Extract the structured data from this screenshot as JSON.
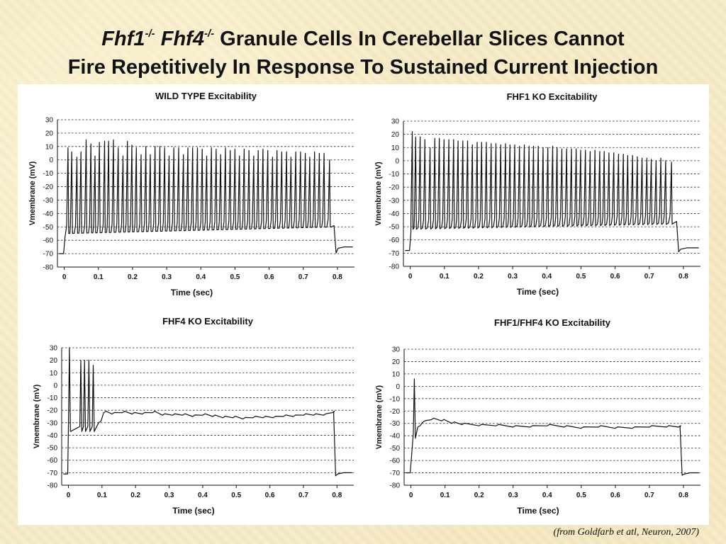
{
  "slide_title": {
    "line1_gene1": "Fhf1",
    "line1_sup1": "-/-",
    "line1_gene2": "Fhf4",
    "line1_sup2": "-/-",
    "line1_rest": " Granule Cells In Cerebellar Slices Cannot",
    "line2": "Fire Repetitively In Response To Sustained Current Injection"
  },
  "citation": "(from Goldfarb et atl, Neuron, 2007)",
  "chart_data": [
    {
      "type": "line",
      "title": "WILD TYPE Excitability",
      "xlabel": "Time (sec)",
      "ylabel": "Vmembrane (mV)",
      "xlim": [
        -0.02,
        0.85
      ],
      "ylim": [
        -80,
        30
      ],
      "xticks": [
        0,
        0.1,
        0.2,
        0.3,
        0.4,
        0.5,
        0.6,
        0.7,
        0.8
      ],
      "xtick_labels": [
        "0",
        "0.1",
        "0.2",
        "0.3",
        "0.4",
        "0.5",
        "0.6",
        "0.7",
        "0.8"
      ],
      "yticks": [
        -80,
        -70,
        -60,
        -50,
        -40,
        -30,
        -20,
        -10,
        0,
        10,
        20,
        30
      ],
      "grid": "horizontal dashed",
      "trace": {
        "rest": -70,
        "stim_on": 0.0,
        "stim_off": 0.79,
        "baseline_pre": -70,
        "baseline_post": -65,
        "plateau_start": -57,
        "plateau_end": -52,
        "spikes": [
          {
            "t": 0.011,
            "peak": 9
          },
          {
            "t": 0.022,
            "peak": 6
          },
          {
            "t": 0.037,
            "peak": 2
          },
          {
            "t": 0.049,
            "peak": 6
          },
          {
            "t": 0.064,
            "peak": 15
          },
          {
            "t": 0.078,
            "peak": 12
          },
          {
            "t": 0.09,
            "peak": 3
          },
          {
            "t": 0.103,
            "peak": 13
          },
          {
            "t": 0.118,
            "peak": 14
          },
          {
            "t": 0.13,
            "peak": 14
          },
          {
            "t": 0.144,
            "peak": 15
          },
          {
            "t": 0.158,
            "peak": 9
          },
          {
            "t": 0.172,
            "peak": 3
          },
          {
            "t": 0.185,
            "peak": 14
          },
          {
            "t": 0.198,
            "peak": 11
          },
          {
            "t": 0.211,
            "peak": 9
          },
          {
            "t": 0.225,
            "peak": 4
          },
          {
            "t": 0.239,
            "peak": 10
          },
          {
            "t": 0.252,
            "peak": 4
          },
          {
            "t": 0.266,
            "peak": 10
          },
          {
            "t": 0.28,
            "peak": 10
          },
          {
            "t": 0.294,
            "peak": 9
          },
          {
            "t": 0.307,
            "peak": 3
          },
          {
            "t": 0.321,
            "peak": 9
          },
          {
            "t": 0.335,
            "peak": 9
          },
          {
            "t": 0.349,
            "peak": 4
          },
          {
            "t": 0.362,
            "peak": 9
          },
          {
            "t": 0.376,
            "peak": 9
          },
          {
            "t": 0.39,
            "peak": 9
          },
          {
            "t": 0.404,
            "peak": 8
          },
          {
            "t": 0.417,
            "peak": 3
          },
          {
            "t": 0.431,
            "peak": 9
          },
          {
            "t": 0.445,
            "peak": 8
          },
          {
            "t": 0.458,
            "peak": 4
          },
          {
            "t": 0.472,
            "peak": 9
          },
          {
            "t": 0.486,
            "peak": 7
          },
          {
            "t": 0.5,
            "peak": 8
          },
          {
            "t": 0.513,
            "peak": 3
          },
          {
            "t": 0.527,
            "peak": 8
          },
          {
            "t": 0.541,
            "peak": 7
          },
          {
            "t": 0.555,
            "peak": 3
          },
          {
            "t": 0.568,
            "peak": 7
          },
          {
            "t": 0.582,
            "peak": 8
          },
          {
            "t": 0.596,
            "peak": 7
          },
          {
            "t": 0.61,
            "peak": 2
          },
          {
            "t": 0.623,
            "peak": 7
          },
          {
            "t": 0.637,
            "peak": 6
          },
          {
            "t": 0.651,
            "peak": 6
          },
          {
            "t": 0.664,
            "peak": 2
          },
          {
            "t": 0.678,
            "peak": 6
          },
          {
            "t": 0.692,
            "peak": 6
          },
          {
            "t": 0.706,
            "peak": 5
          },
          {
            "t": 0.719,
            "peak": 2
          },
          {
            "t": 0.733,
            "peak": 6
          },
          {
            "t": 0.747,
            "peak": 5
          },
          {
            "t": 0.761,
            "peak": 5
          },
          {
            "t": 0.777,
            "peak": 0
          }
        ],
        "spike_trough": -55
      }
    },
    {
      "type": "line",
      "title": "FHF1 KO Excitability",
      "xlabel": "Time (sec)",
      "ylabel": "Vmembrane (mV)",
      "xlim": [
        -0.02,
        0.85
      ],
      "ylim": [
        -80,
        30
      ],
      "xticks": [
        0,
        0.1,
        0.2,
        0.3,
        0.4,
        0.5,
        0.6,
        0.7,
        0.8
      ],
      "xtick_labels": [
        "0",
        "0.1",
        "0.2",
        "0.3",
        "0.4",
        "0.5",
        "0.6",
        "0.7",
        "0.8"
      ],
      "yticks": [
        -80,
        -70,
        -60,
        -50,
        -40,
        -30,
        -20,
        -10,
        0,
        10,
        20,
        30
      ],
      "grid": "horizontal dashed",
      "trace": {
        "rest": -68,
        "stim_on": 0.0,
        "stim_off": 0.78,
        "baseline_pre": -68,
        "baseline_post": -66,
        "plateau_start": -53,
        "plateau_end": -49,
        "spikes": [
          {
            "t": 0.006,
            "peak": 22
          },
          {
            "t": 0.016,
            "peak": 18
          },
          {
            "t": 0.029,
            "peak": 18
          },
          {
            "t": 0.043,
            "peak": 16
          },
          {
            "t": 0.058,
            "peak": 10
          },
          {
            "t": 0.072,
            "peak": 17
          },
          {
            "t": 0.085,
            "peak": 17
          },
          {
            "t": 0.099,
            "peak": 16
          },
          {
            "t": 0.113,
            "peak": 16
          },
          {
            "t": 0.127,
            "peak": 16
          },
          {
            "t": 0.14,
            "peak": 15
          },
          {
            "t": 0.154,
            "peak": 15
          },
          {
            "t": 0.168,
            "peak": 15
          },
          {
            "t": 0.182,
            "peak": 12
          },
          {
            "t": 0.196,
            "peak": 14
          },
          {
            "t": 0.209,
            "peak": 14
          },
          {
            "t": 0.223,
            "peak": 14
          },
          {
            "t": 0.237,
            "peak": 13
          },
          {
            "t": 0.251,
            "peak": 13
          },
          {
            "t": 0.265,
            "peak": 12
          },
          {
            "t": 0.279,
            "peak": 13
          },
          {
            "t": 0.292,
            "peak": 12
          },
          {
            "t": 0.306,
            "peak": 12
          },
          {
            "t": 0.32,
            "peak": 11
          },
          {
            "t": 0.334,
            "peak": 12
          },
          {
            "t": 0.348,
            "peak": 11
          },
          {
            "t": 0.361,
            "peak": 11
          },
          {
            "t": 0.375,
            "peak": 11
          },
          {
            "t": 0.389,
            "peak": 10
          },
          {
            "t": 0.403,
            "peak": 10
          },
          {
            "t": 0.417,
            "peak": 11
          },
          {
            "t": 0.43,
            "peak": 10
          },
          {
            "t": 0.444,
            "peak": 9
          },
          {
            "t": 0.458,
            "peak": 9
          },
          {
            "t": 0.472,
            "peak": 9
          },
          {
            "t": 0.486,
            "peak": 9
          },
          {
            "t": 0.499,
            "peak": 8
          },
          {
            "t": 0.513,
            "peak": 8
          },
          {
            "t": 0.527,
            "peak": 7
          },
          {
            "t": 0.541,
            "peak": 8
          },
          {
            "t": 0.555,
            "peak": 7
          },
          {
            "t": 0.568,
            "peak": 7
          },
          {
            "t": 0.582,
            "peak": 6
          },
          {
            "t": 0.596,
            "peak": 6
          },
          {
            "t": 0.61,
            "peak": 5
          },
          {
            "t": 0.624,
            "peak": 5
          },
          {
            "t": 0.637,
            "peak": 4
          },
          {
            "t": 0.651,
            "peak": 4
          },
          {
            "t": 0.665,
            "peak": 3
          },
          {
            "t": 0.679,
            "peak": 2
          },
          {
            "t": 0.693,
            "peak": 2
          },
          {
            "t": 0.706,
            "peak": 1
          },
          {
            "t": 0.72,
            "peak": 0
          },
          {
            "t": 0.734,
            "peak": 2
          },
          {
            "t": 0.748,
            "peak": 0
          },
          {
            "t": 0.765,
            "peak": -1
          }
        ],
        "spike_trough": -52
      }
    },
    {
      "type": "line",
      "title": "FHF4 KO Excitability",
      "xlabel": "Time (sec)",
      "ylabel": "Vmembrane (mV)",
      "xlim": [
        -0.02,
        0.85
      ],
      "ylim": [
        -80,
        30
      ],
      "xticks": [
        0,
        0.1,
        0.2,
        0.3,
        0.4,
        0.5,
        0.6,
        0.7,
        0.8
      ],
      "xtick_labels": [
        "0",
        "0.1",
        "0.2",
        "0.3",
        "0.4",
        "0.5",
        "0.6",
        "0.7",
        "0.8"
      ],
      "yticks": [
        -80,
        -70,
        -60,
        -50,
        -40,
        -30,
        -20,
        -10,
        0,
        10,
        20,
        30
      ],
      "grid": "horizontal dashed",
      "trace": {
        "rest": -71,
        "stim_on": 0.0,
        "stim_off": 0.79,
        "baseline_pre": -71,
        "baseline_post": -70,
        "spikes": [
          {
            "t": 0.003,
            "peak": 30
          },
          {
            "t": 0.037,
            "peak": 20
          },
          {
            "t": 0.048,
            "peak": 20
          },
          {
            "t": 0.061,
            "peak": 20
          },
          {
            "t": 0.074,
            "peak": 16
          }
        ],
        "spike_trough": -37,
        "plateau": [
          [
            0.09,
            -30
          ],
          [
            0.105,
            -22
          ],
          [
            0.13,
            -23
          ],
          [
            0.16,
            -22
          ],
          [
            0.19,
            -23
          ],
          [
            0.22,
            -23
          ],
          [
            0.25,
            -22
          ],
          [
            0.28,
            -24
          ],
          [
            0.31,
            -24
          ],
          [
            0.34,
            -24
          ],
          [
            0.37,
            -25
          ],
          [
            0.4,
            -24
          ],
          [
            0.43,
            -25
          ],
          [
            0.46,
            -26
          ],
          [
            0.49,
            -26
          ],
          [
            0.52,
            -27
          ],
          [
            0.55,
            -26
          ],
          [
            0.58,
            -26
          ],
          [
            0.61,
            -26
          ],
          [
            0.64,
            -25
          ],
          [
            0.67,
            -25
          ],
          [
            0.7,
            -24
          ],
          [
            0.73,
            -24
          ],
          [
            0.76,
            -24
          ],
          [
            0.785,
            -22
          ]
        ]
      }
    },
    {
      "type": "line",
      "title": "FHF1/FHF4 KO Excitability",
      "xlabel": "Time (sec)",
      "ylabel": "Vmembrane (mV)",
      "xlim": [
        -0.02,
        0.85
      ],
      "ylim": [
        -80,
        30
      ],
      "xticks": [
        0,
        0.1,
        0.2,
        0.3,
        0.4,
        0.5,
        0.6,
        0.7,
        0.8
      ],
      "xtick_labels": [
        "0",
        "0.1",
        "0.2",
        "0.3",
        "0.4",
        "0.5",
        "0.6",
        "0.7",
        "0.8"
      ],
      "yticks": [
        -80,
        -70,
        -60,
        -50,
        -40,
        -30,
        -20,
        -10,
        0,
        10,
        20,
        30
      ],
      "grid": "horizontal dashed",
      "trace": {
        "rest": -70,
        "stim_on": 0.0,
        "stim_off": 0.79,
        "baseline_pre": -70,
        "baseline_post": -70,
        "spikes": [
          {
            "t": 0.01,
            "peak": 6
          }
        ],
        "spike_trough": -42,
        "plateau": [
          [
            0.02,
            -33
          ],
          [
            0.035,
            -29
          ],
          [
            0.06,
            -27
          ],
          [
            0.09,
            -28
          ],
          [
            0.12,
            -30
          ],
          [
            0.15,
            -31
          ],
          [
            0.2,
            -32
          ],
          [
            0.25,
            -32
          ],
          [
            0.3,
            -33
          ],
          [
            0.35,
            -33
          ],
          [
            0.4,
            -32
          ],
          [
            0.45,
            -33
          ],
          [
            0.5,
            -34
          ],
          [
            0.55,
            -33
          ],
          [
            0.6,
            -34
          ],
          [
            0.65,
            -34
          ],
          [
            0.7,
            -33
          ],
          [
            0.75,
            -33
          ],
          [
            0.785,
            -33
          ]
        ]
      }
    }
  ]
}
